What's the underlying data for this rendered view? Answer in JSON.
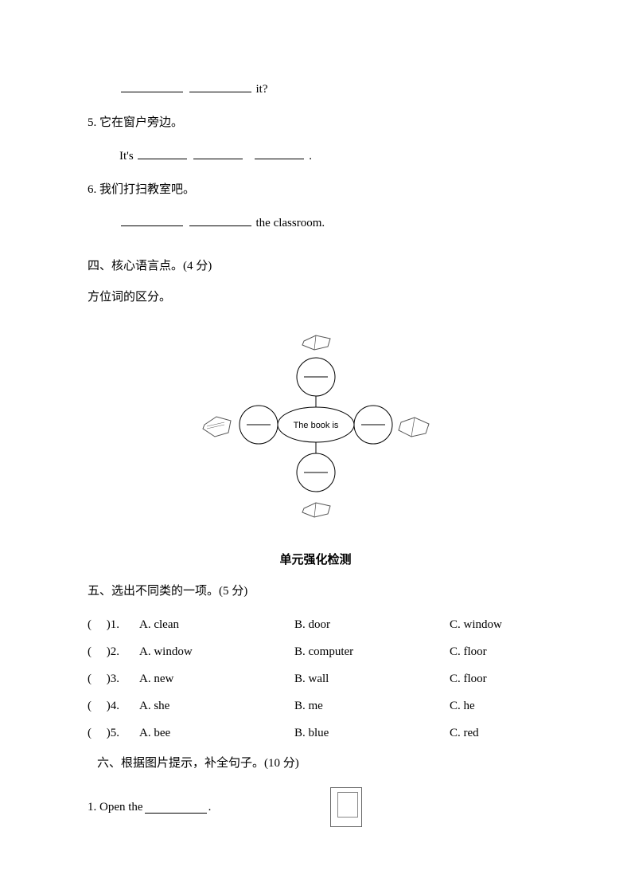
{
  "q_it": {
    "suffix": " it?"
  },
  "q5": {
    "prompt": "5. 它在窗户旁边。",
    "line": {
      "prefix": "It's ",
      "suffix": "."
    }
  },
  "q6": {
    "prompt": "6. 我们打扫教室吧。",
    "suffix": "the classroom."
  },
  "section4": {
    "title": "四、核心语言点。(4 分)",
    "sub": "方位词的区分。"
  },
  "diagram": {
    "center": "The book is",
    "circle_line": "——"
  },
  "unit_title": "单元强化检测",
  "section5": {
    "title": "五、选出不同类的一项。(5 分)",
    "items": [
      {
        "n": "1",
        "a": "A. clean",
        "b": "B. door",
        "c": "C. window"
      },
      {
        "n": "2",
        "a": "A. window",
        "b": "B. computer",
        "c": "C. floor"
      },
      {
        "n": "3",
        "a": "A. new",
        "b": "B. wall",
        "c": "C. floor"
      },
      {
        "n": "4",
        "a": "A. she",
        "b": "B. me",
        "c": "C. he"
      },
      {
        "n": "5",
        "a": "A. bee",
        "b": "B. blue",
        "c": "C. red"
      }
    ]
  },
  "section6": {
    "title": "六、根据图片提示，补全句子。(10 分)",
    "item1": {
      "prefix": "1. Open the",
      "suffix": "."
    }
  }
}
